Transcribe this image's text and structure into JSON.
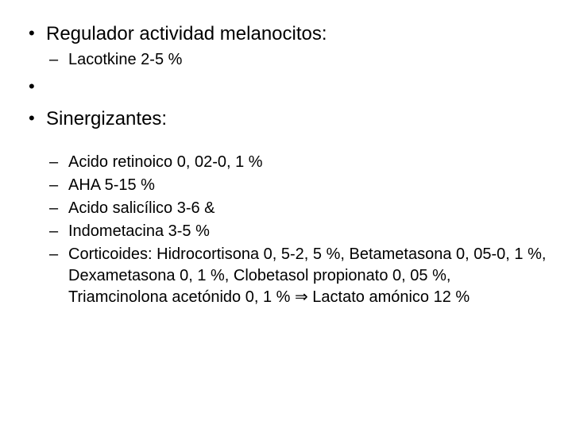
{
  "colors": {
    "background": "#ffffff",
    "text": "#000000"
  },
  "typography": {
    "font_family": "Arial",
    "level1_fontsize": 24,
    "level2_fontsize": 20
  },
  "items": [
    {
      "text": "Regulador actividad melanocitos:",
      "sub": [
        "Lacotkine 2-5 %"
      ]
    },
    {
      "text": "Sinergizantes:",
      "sub": [
        "Acido retinoico 0, 02-0, 1 %",
        "AHA 5-15 %",
        "Acido salicílico 3-6 &",
        "Indometacina 3-5 %",
        "Corticoides: Hidrocortisona 0, 5-2, 5 %, Betametasona 0, 05-0, 1 %, Dexametasona 0, 1 %, Clobetasol propionato 0, 05 %, Triamcinolona acetónido 0, 1 % ⇒ Lactato amónico 12 %"
      ]
    }
  ]
}
